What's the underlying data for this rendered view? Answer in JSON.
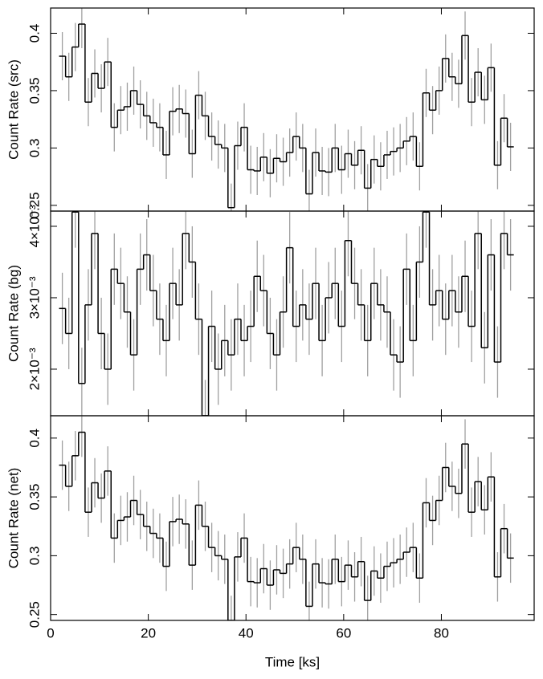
{
  "chart_data": [
    {
      "type": "step",
      "ylabel": "Count Rate (src)",
      "color": "#000000",
      "error_color": "#a0a0a0",
      "xlim": [
        0,
        99
      ],
      "xticks": [
        0,
        20,
        40,
        60,
        80
      ],
      "ylim": [
        0.245,
        0.422
      ],
      "yticks": [
        0.25,
        0.3,
        0.35,
        0.4
      ],
      "x": [
        2.4,
        3.73,
        5.06,
        6.39,
        7.72,
        9.05,
        10.38,
        11.71,
        13.04,
        14.37,
        15.7,
        17.03,
        18.36,
        19.69,
        21.02,
        22.35,
        23.68,
        25.01,
        26.34,
        27.67,
        29,
        30.33,
        31.66,
        32.99,
        34.32,
        35.65,
        36.98,
        38.31,
        39.64,
        40.97,
        42.3,
        43.63,
        44.96,
        46.29,
        47.62,
        48.95,
        50.28,
        51.61,
        52.94,
        54.27,
        55.6,
        56.93,
        58.26,
        59.59,
        60.92,
        62.25,
        63.58,
        64.91,
        66.24,
        67.57,
        68.9,
        70.23,
        71.56,
        72.89,
        74.22,
        75.55,
        76.88,
        78.21,
        79.54,
        80.87,
        82.2,
        83.53,
        84.86,
        86.19,
        87.52,
        88.85,
        90.18,
        91.51,
        92.84,
        94.17
      ],
      "values": [
        0.38,
        0.362,
        0.388,
        0.408,
        0.34,
        0.365,
        0.352,
        0.375,
        0.318,
        0.333,
        0.336,
        0.35,
        0.338,
        0.328,
        0.322,
        0.318,
        0.294,
        0.332,
        0.334,
        0.33,
        0.295,
        0.346,
        0.328,
        0.31,
        0.303,
        0.3,
        0.248,
        0.302,
        0.318,
        0.281,
        0.28,
        0.292,
        0.278,
        0.291,
        0.288,
        0.296,
        0.31,
        0.3,
        0.26,
        0.296,
        0.28,
        0.279,
        0.3,
        0.281,
        0.295,
        0.285,
        0.298,
        0.265,
        0.29,
        0.284,
        0.294,
        0.297,
        0.3,
        0.306,
        0.31,
        0.284,
        0.348,
        0.333,
        0.35,
        0.378,
        0.362,
        0.356,
        0.398,
        0.34,
        0.366,
        0.342,
        0.37,
        0.285,
        0.326,
        0.301
      ],
      "errors": [
        0.021,
        0.021,
        0.021,
        0.021,
        0.021,
        0.021,
        0.021,
        0.021,
        0.021,
        0.021,
        0.021,
        0.021,
        0.021,
        0.021,
        0.021,
        0.021,
        0.021,
        0.021,
        0.021,
        0.021,
        0.021,
        0.021,
        0.021,
        0.021,
        0.021,
        0.021,
        0.021,
        0.021,
        0.021,
        0.021,
        0.021,
        0.021,
        0.021,
        0.021,
        0.021,
        0.021,
        0.021,
        0.021,
        0.021,
        0.021,
        0.021,
        0.021,
        0.021,
        0.021,
        0.021,
        0.021,
        0.021,
        0.021,
        0.021,
        0.021,
        0.021,
        0.021,
        0.021,
        0.021,
        0.021,
        0.021,
        0.021,
        0.021,
        0.021,
        0.021,
        0.021,
        0.021,
        0.021,
        0.021,
        0.021,
        0.021,
        0.021,
        0.021,
        0.021,
        0.021
      ]
    },
    {
      "type": "step",
      "ylabel": "Count Rate (bg)",
      "color": "#000000",
      "error_color": "#a0a0a0",
      "xlim": [
        0,
        99
      ],
      "xticks": [
        0,
        20,
        40,
        60,
        80
      ],
      "ylim": [
        0.001348,
        0.004213
      ],
      "yticks": [
        {
          "value": 0.002,
          "label": "2×10⁻³"
        },
        {
          "value": 0.003,
          "label": "3×10⁻³"
        },
        {
          "value": 0.004,
          "label": "4×10⁻³"
        }
      ],
      "x": [
        2.4,
        3.73,
        5.06,
        6.39,
        7.72,
        9.05,
        10.38,
        11.71,
        13.04,
        14.37,
        15.7,
        17.03,
        18.36,
        19.69,
        21.02,
        22.35,
        23.68,
        25.01,
        26.34,
        27.67,
        29,
        30.33,
        31.66,
        32.99,
        34.32,
        35.65,
        36.98,
        38.31,
        39.64,
        40.97,
        42.3,
        43.63,
        44.96,
        46.29,
        47.62,
        48.95,
        50.28,
        51.61,
        52.94,
        54.27,
        55.6,
        56.93,
        58.26,
        59.59,
        60.92,
        62.25,
        63.58,
        64.91,
        66.24,
        67.57,
        68.9,
        70.23,
        71.56,
        72.89,
        74.22,
        75.55,
        76.88,
        78.21,
        79.54,
        80.87,
        82.2,
        83.53,
        84.86,
        86.19,
        87.52,
        88.85,
        90.18,
        91.51,
        92.84,
        94.17
      ],
      "values": [
        0.00285,
        0.0025,
        0.0042,
        0.0018,
        0.0029,
        0.0039,
        0.0025,
        0.002,
        0.0034,
        0.0032,
        0.0028,
        0.0022,
        0.0034,
        0.0036,
        0.0031,
        0.0027,
        0.0024,
        0.0032,
        0.0029,
        0.0039,
        0.0035,
        0.0027,
        0.00135,
        0.0026,
        0.002,
        0.0024,
        0.0022,
        0.0027,
        0.0024,
        0.0026,
        0.0033,
        0.0031,
        0.0025,
        0.0022,
        0.0028,
        0.0037,
        0.0026,
        0.0029,
        0.0027,
        0.0032,
        0.0024,
        0.003,
        0.0032,
        0.0026,
        0.0038,
        0.0032,
        0.0029,
        0.0024,
        0.0032,
        0.0029,
        0.0028,
        0.0022,
        0.0021,
        0.0034,
        0.0024,
        0.0035,
        0.0042,
        0.0029,
        0.0031,
        0.0027,
        0.0031,
        0.0028,
        0.0033,
        0.0026,
        0.0039,
        0.0023,
        0.0036,
        0.0021,
        0.0039,
        0.0036
      ],
      "errors": [
        0.0005,
        0.0005,
        0.0005,
        0.0005,
        0.0005,
        0.0005,
        0.0005,
        0.0005,
        0.0005,
        0.0005,
        0.0005,
        0.0005,
        0.0005,
        0.0005,
        0.0005,
        0.0005,
        0.0005,
        0.0005,
        0.0005,
        0.0005,
        0.0005,
        0.0005,
        0.0005,
        0.0005,
        0.0005,
        0.0005,
        0.0005,
        0.0005,
        0.0005,
        0.0005,
        0.0005,
        0.0005,
        0.0005,
        0.0005,
        0.0005,
        0.0005,
        0.0005,
        0.0005,
        0.0005,
        0.0005,
        0.0005,
        0.0005,
        0.0005,
        0.0005,
        0.0005,
        0.0005,
        0.0005,
        0.0005,
        0.0005,
        0.0005,
        0.0005,
        0.0005,
        0.0005,
        0.0005,
        0.0005,
        0.0005,
        0.0005,
        0.0005,
        0.0005,
        0.0005,
        0.0005,
        0.0005,
        0.0005,
        0.0005,
        0.0005,
        0.0005,
        0.0005,
        0.0005,
        0.0005,
        0.0005
      ]
    },
    {
      "type": "step",
      "ylabel": "Count Rate (net)",
      "xlabel": "Time [ks]",
      "color": "#000000",
      "error_color": "#a0a0a0",
      "xlim": [
        0,
        99
      ],
      "xticks": [
        0,
        20,
        40,
        60,
        80
      ],
      "ylim": [
        0.245,
        0.419
      ],
      "yticks": [
        0.25,
        0.3,
        0.35,
        0.4
      ],
      "x": [
        2.4,
        3.73,
        5.06,
        6.39,
        7.72,
        9.05,
        10.38,
        11.71,
        13.04,
        14.37,
        15.7,
        17.03,
        18.36,
        19.69,
        21.02,
        22.35,
        23.68,
        25.01,
        26.34,
        27.67,
        29,
        30.33,
        31.66,
        32.99,
        34.32,
        35.65,
        36.98,
        38.31,
        39.64,
        40.97,
        42.3,
        43.63,
        44.96,
        46.29,
        47.62,
        48.95,
        50.28,
        51.61,
        52.94,
        54.27,
        55.6,
        56.93,
        58.26,
        59.59,
        60.92,
        62.25,
        63.58,
        64.91,
        66.24,
        67.57,
        68.9,
        70.23,
        71.56,
        72.89,
        74.22,
        75.55,
        76.88,
        78.21,
        79.54,
        80.87,
        82.2,
        83.53,
        84.86,
        86.19,
        87.52,
        88.85,
        90.18,
        91.51,
        92.84,
        94.17
      ],
      "values": [
        0.377,
        0.359,
        0.385,
        0.405,
        0.337,
        0.362,
        0.349,
        0.372,
        0.315,
        0.33,
        0.333,
        0.347,
        0.335,
        0.325,
        0.319,
        0.315,
        0.291,
        0.329,
        0.331,
        0.327,
        0.292,
        0.343,
        0.325,
        0.307,
        0.3,
        0.297,
        0.245,
        0.299,
        0.315,
        0.278,
        0.277,
        0.289,
        0.275,
        0.288,
        0.285,
        0.293,
        0.307,
        0.297,
        0.257,
        0.293,
        0.277,
        0.276,
        0.297,
        0.278,
        0.292,
        0.282,
        0.295,
        0.262,
        0.287,
        0.281,
        0.291,
        0.294,
        0.297,
        0.303,
        0.307,
        0.281,
        0.345,
        0.33,
        0.347,
        0.375,
        0.359,
        0.353,
        0.395,
        0.337,
        0.363,
        0.339,
        0.367,
        0.282,
        0.323,
        0.298
      ],
      "errors": [
        0.021,
        0.021,
        0.021,
        0.021,
        0.021,
        0.021,
        0.021,
        0.021,
        0.021,
        0.021,
        0.021,
        0.021,
        0.021,
        0.021,
        0.021,
        0.021,
        0.021,
        0.021,
        0.021,
        0.021,
        0.021,
        0.021,
        0.021,
        0.021,
        0.021,
        0.021,
        0.021,
        0.021,
        0.021,
        0.021,
        0.021,
        0.021,
        0.021,
        0.021,
        0.021,
        0.021,
        0.021,
        0.021,
        0.021,
        0.021,
        0.021,
        0.021,
        0.021,
        0.021,
        0.021,
        0.021,
        0.021,
        0.021,
        0.021,
        0.021,
        0.021,
        0.021,
        0.021,
        0.021,
        0.021,
        0.021,
        0.021,
        0.021,
        0.021,
        0.021,
        0.021,
        0.021,
        0.021,
        0.021,
        0.021,
        0.021,
        0.021,
        0.021,
        0.021,
        0.021
      ]
    }
  ]
}
